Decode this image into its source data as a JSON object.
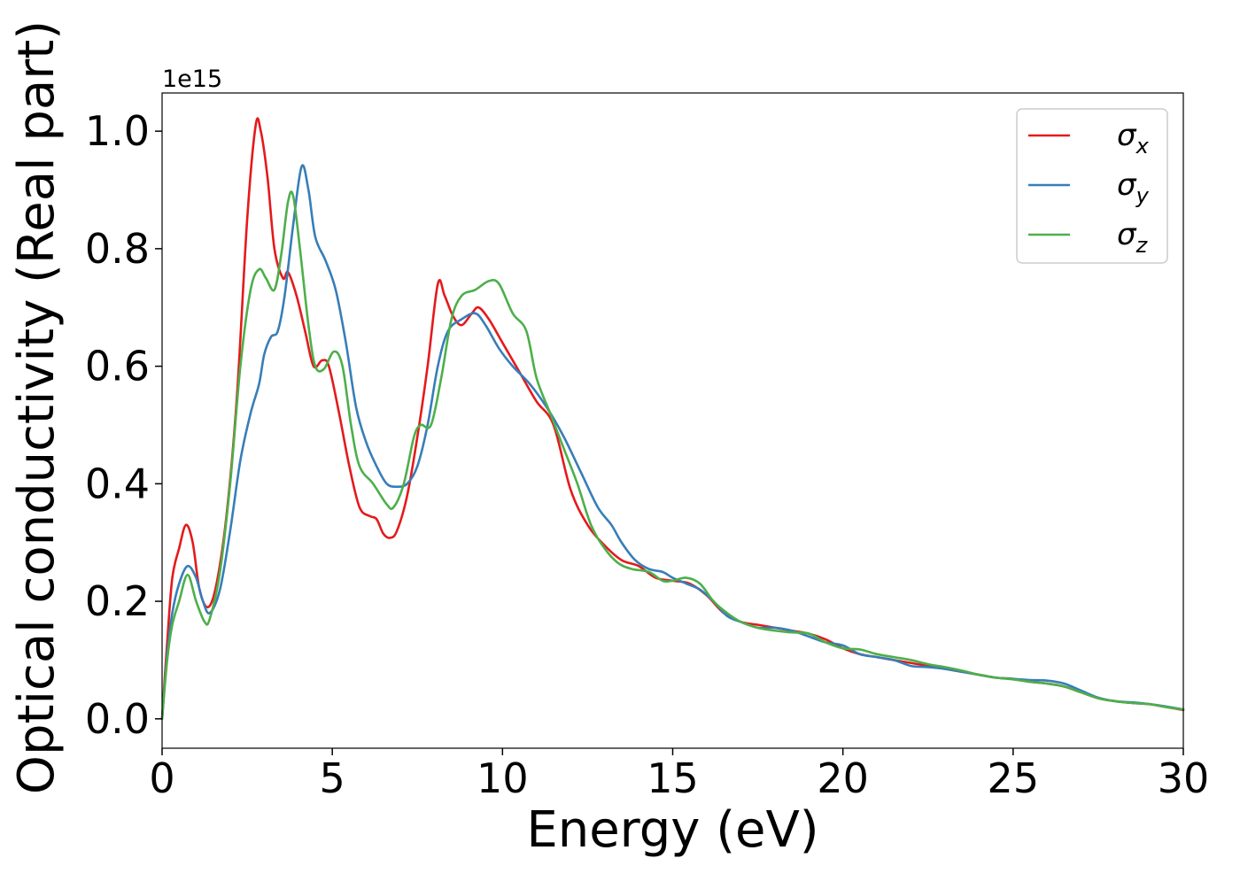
{
  "chart_data": {
    "type": "line",
    "title": "",
    "xlabel": "Energy (eV)",
    "ylabel": "Optical conductivity (Real part)",
    "y_offset_label": "1e15",
    "y_multiplier": 1000000000000000.0,
    "xlim": [
      0,
      30
    ],
    "ylim": [
      -0.05,
      1.065
    ],
    "xticks": [
      0,
      5,
      10,
      15,
      20,
      25,
      30
    ],
    "xtick_labels": [
      "0",
      "5",
      "10",
      "15",
      "20",
      "25",
      "30"
    ],
    "yticks": [
      0.0,
      0.2,
      0.4,
      0.6,
      0.8,
      1.0
    ],
    "ytick_labels": [
      "0.0",
      "0.2",
      "0.4",
      "0.6",
      "0.8",
      "1.0"
    ],
    "grid": false,
    "legend_position": "top-right",
    "series": [
      {
        "name": "σ",
        "subscript": "x",
        "color": "#e41a1c",
        "points": [
          [
            0,
            0
          ],
          [
            0.15,
            0.13
          ],
          [
            0.3,
            0.24
          ],
          [
            0.5,
            0.29
          ],
          [
            0.7,
            0.33
          ],
          [
            0.9,
            0.3
          ],
          [
            1.1,
            0.22
          ],
          [
            1.35,
            0.19
          ],
          [
            1.6,
            0.23
          ],
          [
            1.9,
            0.35
          ],
          [
            2.2,
            0.55
          ],
          [
            2.5,
            0.85
          ],
          [
            2.75,
            1.01
          ],
          [
            2.9,
            1.0
          ],
          [
            3.1,
            0.92
          ],
          [
            3.3,
            0.8
          ],
          [
            3.55,
            0.75
          ],
          [
            3.7,
            0.76
          ],
          [
            3.95,
            0.72
          ],
          [
            4.2,
            0.66
          ],
          [
            4.45,
            0.6
          ],
          [
            4.7,
            0.61
          ],
          [
            4.9,
            0.6
          ],
          [
            5.2,
            0.52
          ],
          [
            5.5,
            0.43
          ],
          [
            5.8,
            0.36
          ],
          [
            6.1,
            0.345
          ],
          [
            6.3,
            0.34
          ],
          [
            6.5,
            0.315
          ],
          [
            6.7,
            0.308
          ],
          [
            6.9,
            0.32
          ],
          [
            7.2,
            0.38
          ],
          [
            7.5,
            0.48
          ],
          [
            7.8,
            0.6
          ],
          [
            8.1,
            0.74
          ],
          [
            8.3,
            0.72
          ],
          [
            8.55,
            0.685
          ],
          [
            8.8,
            0.67
          ],
          [
            9.1,
            0.69
          ],
          [
            9.3,
            0.7
          ],
          [
            9.6,
            0.68
          ],
          [
            10.0,
            0.64
          ],
          [
            10.5,
            0.59
          ],
          [
            11.0,
            0.54
          ],
          [
            11.5,
            0.5
          ],
          [
            12.0,
            0.39
          ],
          [
            12.5,
            0.33
          ],
          [
            13.0,
            0.295
          ],
          [
            13.5,
            0.27
          ],
          [
            14.0,
            0.26
          ],
          [
            14.5,
            0.24
          ],
          [
            15.0,
            0.235
          ],
          [
            15.5,
            0.23
          ],
          [
            16.0,
            0.21
          ],
          [
            16.5,
            0.18
          ],
          [
            17.0,
            0.165
          ],
          [
            17.5,
            0.16
          ],
          [
            18.0,
            0.155
          ],
          [
            18.5,
            0.15
          ],
          [
            19.0,
            0.145
          ],
          [
            19.5,
            0.135
          ],
          [
            20.0,
            0.12
          ],
          [
            20.5,
            0.11
          ],
          [
            21.0,
            0.105
          ],
          [
            21.5,
            0.1
          ],
          [
            22.0,
            0.095
          ],
          [
            22.5,
            0.09
          ],
          [
            23.0,
            0.085
          ],
          [
            23.5,
            0.08
          ],
          [
            24.0,
            0.075
          ],
          [
            24.5,
            0.07
          ],
          [
            25.0,
            0.068
          ],
          [
            25.5,
            0.063
          ],
          [
            26.0,
            0.06
          ],
          [
            26.5,
            0.055
          ],
          [
            27.0,
            0.045
          ],
          [
            27.5,
            0.035
          ],
          [
            28.0,
            0.03
          ],
          [
            28.5,
            0.027
          ],
          [
            29.0,
            0.025
          ],
          [
            29.5,
            0.02
          ],
          [
            30.0,
            0.015
          ]
        ]
      },
      {
        "name": "σ",
        "subscript": "y",
        "color": "#377eb8",
        "points": [
          [
            0,
            0
          ],
          [
            0.15,
            0.11
          ],
          [
            0.3,
            0.18
          ],
          [
            0.5,
            0.23
          ],
          [
            0.75,
            0.26
          ],
          [
            1.0,
            0.24
          ],
          [
            1.2,
            0.2
          ],
          [
            1.4,
            0.18
          ],
          [
            1.7,
            0.22
          ],
          [
            2.0,
            0.32
          ],
          [
            2.3,
            0.44
          ],
          [
            2.6,
            0.52
          ],
          [
            2.85,
            0.57
          ],
          [
            3.0,
            0.62
          ],
          [
            3.2,
            0.65
          ],
          [
            3.4,
            0.66
          ],
          [
            3.6,
            0.72
          ],
          [
            3.85,
            0.84
          ],
          [
            4.1,
            0.94
          ],
          [
            4.3,
            0.9
          ],
          [
            4.5,
            0.82
          ],
          [
            4.8,
            0.78
          ],
          [
            5.1,
            0.73
          ],
          [
            5.4,
            0.64
          ],
          [
            5.7,
            0.53
          ],
          [
            6.0,
            0.47
          ],
          [
            6.3,
            0.43
          ],
          [
            6.6,
            0.4
          ],
          [
            6.9,
            0.395
          ],
          [
            7.2,
            0.4
          ],
          [
            7.5,
            0.43
          ],
          [
            7.8,
            0.5
          ],
          [
            8.1,
            0.6
          ],
          [
            8.4,
            0.66
          ],
          [
            8.8,
            0.68
          ],
          [
            9.2,
            0.69
          ],
          [
            9.5,
            0.67
          ],
          [
            9.9,
            0.63
          ],
          [
            10.3,
            0.6
          ],
          [
            10.8,
            0.57
          ],
          [
            11.3,
            0.53
          ],
          [
            11.8,
            0.48
          ],
          [
            12.3,
            0.42
          ],
          [
            12.8,
            0.36
          ],
          [
            13.2,
            0.33
          ],
          [
            13.5,
            0.3
          ],
          [
            13.9,
            0.27
          ],
          [
            14.3,
            0.255
          ],
          [
            14.7,
            0.25
          ],
          [
            15.0,
            0.24
          ],
          [
            15.4,
            0.23
          ],
          [
            15.8,
            0.22
          ],
          [
            16.2,
            0.2
          ],
          [
            16.6,
            0.175
          ],
          [
            17.0,
            0.165
          ],
          [
            17.5,
            0.155
          ],
          [
            18.0,
            0.155
          ],
          [
            18.5,
            0.15
          ],
          [
            19.0,
            0.14
          ],
          [
            19.5,
            0.13
          ],
          [
            20.0,
            0.125
          ],
          [
            20.5,
            0.11
          ],
          [
            21.0,
            0.105
          ],
          [
            21.5,
            0.1
          ],
          [
            22.0,
            0.09
          ],
          [
            22.5,
            0.088
          ],
          [
            23.0,
            0.085
          ],
          [
            23.5,
            0.08
          ],
          [
            24.0,
            0.075
          ],
          [
            24.5,
            0.07
          ],
          [
            25.0,
            0.068
          ],
          [
            25.5,
            0.066
          ],
          [
            26.0,
            0.065
          ],
          [
            26.5,
            0.06
          ],
          [
            27.0,
            0.048
          ],
          [
            27.5,
            0.036
          ],
          [
            28.0,
            0.03
          ],
          [
            28.5,
            0.028
          ],
          [
            29.0,
            0.025
          ],
          [
            29.5,
            0.021
          ],
          [
            30.0,
            0.016
          ]
        ]
      },
      {
        "name": "σ",
        "subscript": "z",
        "color": "#4daf4a",
        "points": [
          [
            0,
            0
          ],
          [
            0.15,
            0.1
          ],
          [
            0.3,
            0.16
          ],
          [
            0.5,
            0.2
          ],
          [
            0.75,
            0.245
          ],
          [
            1.0,
            0.2
          ],
          [
            1.25,
            0.165
          ],
          [
            1.4,
            0.17
          ],
          [
            1.7,
            0.25
          ],
          [
            2.0,
            0.4
          ],
          [
            2.3,
            0.6
          ],
          [
            2.6,
            0.73
          ],
          [
            2.85,
            0.765
          ],
          [
            3.05,
            0.75
          ],
          [
            3.3,
            0.73
          ],
          [
            3.5,
            0.79
          ],
          [
            3.7,
            0.88
          ],
          [
            3.85,
            0.89
          ],
          [
            4.05,
            0.8
          ],
          [
            4.3,
            0.67
          ],
          [
            4.5,
            0.6
          ],
          [
            4.75,
            0.595
          ],
          [
            5.05,
            0.625
          ],
          [
            5.3,
            0.6
          ],
          [
            5.55,
            0.5
          ],
          [
            5.8,
            0.43
          ],
          [
            6.2,
            0.4
          ],
          [
            6.6,
            0.365
          ],
          [
            6.8,
            0.36
          ],
          [
            7.1,
            0.4
          ],
          [
            7.4,
            0.48
          ],
          [
            7.6,
            0.5
          ],
          [
            7.9,
            0.5
          ],
          [
            8.2,
            0.58
          ],
          [
            8.5,
            0.68
          ],
          [
            8.8,
            0.72
          ],
          [
            9.2,
            0.73
          ],
          [
            9.6,
            0.745
          ],
          [
            9.9,
            0.74
          ],
          [
            10.3,
            0.69
          ],
          [
            10.7,
            0.66
          ],
          [
            11.0,
            0.58
          ],
          [
            11.4,
            0.52
          ],
          [
            11.8,
            0.46
          ],
          [
            12.2,
            0.4
          ],
          [
            12.6,
            0.33
          ],
          [
            13.0,
            0.29
          ],
          [
            13.4,
            0.265
          ],
          [
            13.8,
            0.255
          ],
          [
            14.3,
            0.25
          ],
          [
            14.7,
            0.235
          ],
          [
            15.0,
            0.235
          ],
          [
            15.4,
            0.24
          ],
          [
            15.8,
            0.23
          ],
          [
            16.2,
            0.2
          ],
          [
            16.6,
            0.18
          ],
          [
            17.0,
            0.165
          ],
          [
            17.5,
            0.155
          ],
          [
            18.0,
            0.15
          ],
          [
            18.5,
            0.147
          ],
          [
            19.0,
            0.145
          ],
          [
            19.5,
            0.13
          ],
          [
            20.0,
            0.12
          ],
          [
            20.5,
            0.118
          ],
          [
            21.0,
            0.11
          ],
          [
            21.5,
            0.105
          ],
          [
            22.0,
            0.1
          ],
          [
            22.5,
            0.093
          ],
          [
            23.0,
            0.088
          ],
          [
            23.5,
            0.082
          ],
          [
            24.0,
            0.075
          ],
          [
            24.5,
            0.07
          ],
          [
            25.0,
            0.067
          ],
          [
            25.5,
            0.063
          ],
          [
            26.0,
            0.06
          ],
          [
            26.5,
            0.055
          ],
          [
            27.0,
            0.045
          ],
          [
            27.5,
            0.035
          ],
          [
            28.0,
            0.03
          ],
          [
            28.5,
            0.027
          ],
          [
            29.0,
            0.025
          ],
          [
            29.5,
            0.02
          ],
          [
            30.0,
            0.016
          ]
        ]
      }
    ]
  }
}
